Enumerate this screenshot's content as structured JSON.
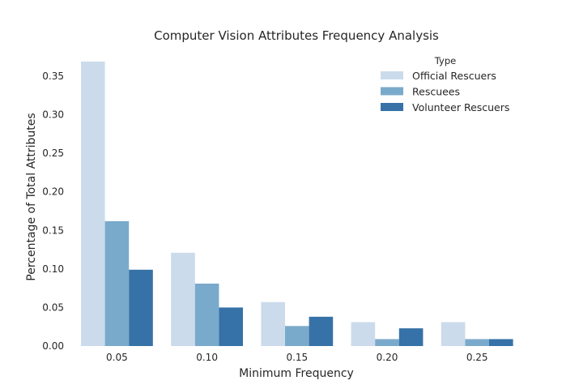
{
  "chart_data": {
    "type": "bar",
    "title": "Computer Vision Attributes Frequency Analysis",
    "xlabel": "Minimum Frequency",
    "ylabel": "Percentage of Total Attributes",
    "categories": [
      "0.05",
      "0.10",
      "0.15",
      "0.20",
      "0.25"
    ],
    "series": [
      {
        "name": "Official Rescuers",
        "color": "#cbdbeb",
        "values": [
          0.369,
          0.121,
          0.057,
          0.031,
          0.031
        ]
      },
      {
        "name": "Rescuees",
        "color": "#7aaacb",
        "values": [
          0.162,
          0.081,
          0.026,
          0.009,
          0.009
        ]
      },
      {
        "name": "Volunteer Rescuers",
        "color": "#3672a7",
        "values": [
          0.099,
          0.05,
          0.038,
          0.023,
          0.009
        ]
      }
    ],
    "ylim": [
      0,
      0.37
    ],
    "yticks": [
      "0.00",
      "0.05",
      "0.10",
      "0.15",
      "0.20",
      "0.25",
      "0.30",
      "0.35"
    ],
    "grid": false,
    "legend": {
      "title": "Type",
      "placement": "top-right"
    }
  }
}
